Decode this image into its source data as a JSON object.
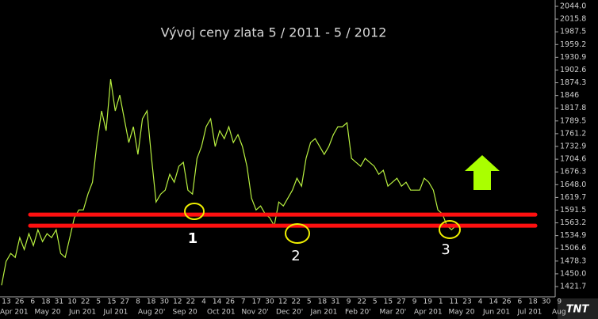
{
  "chart_data": {
    "type": "line",
    "title": "Vývoj ceny zlata 5 / 2011  -  5 / 2012",
    "color": "#b8f040",
    "values": [
      1424.8,
      1477.6,
      1495.2,
      1486.4,
      1530.4,
      1504.0,
      1539.2,
      1512.8,
      1548.0,
      1521.6,
      1539.2,
      1530.4,
      1548.0,
      1495.2,
      1486.4,
      1530.4,
      1574.3,
      1591.9,
      1591.9,
      1627.1,
      1653.5,
      1741.5,
      1811.8,
      1767.8,
      1882.2,
      1811.8,
      1847.0,
      1794.2,
      1741.5,
      1776.6,
      1715.1,
      1794.2,
      1811.8,
      1706.3,
      1609.5,
      1627.1,
      1635.9,
      1671.1,
      1653.5,
      1688.7,
      1697.5,
      1635.9,
      1627.1,
      1706.3,
      1732.7,
      1776.6,
      1794.2,
      1732.7,
      1767.8,
      1750.2,
      1776.6,
      1741.5,
      1759.0,
      1732.7,
      1688.7,
      1618.3,
      1591.9,
      1600.7,
      1583.1,
      1574.3,
      1556.8,
      1609.5,
      1600.7,
      1618.3,
      1635.9,
      1662.3,
      1644.7,
      1706.3,
      1741.5,
      1750.2,
      1732.7,
      1715.1,
      1732.7,
      1759.0,
      1776.6,
      1776.6,
      1785.4,
      1706.3,
      1697.5,
      1688.7,
      1706.3,
      1697.5,
      1688.7,
      1671.1,
      1679.9,
      1644.7,
      1653.5,
      1662.3,
      1644.7,
      1653.5,
      1635.9,
      1635.9,
      1635.9,
      1662.3,
      1653.5,
      1635.9,
      1591.9,
      1583.1,
      1556.8,
      1548.0,
      1556.8
    ],
    "ylim": [
      1398.9,
      2058.1
    ],
    "yticks": [
      {
        "value": 2044,
        "label": "2044.0"
      },
      2015.8,
      1987.5,
      1959.2,
      1930.9,
      1902.6,
      1874.3,
      1846,
      1817.8,
      1789.5,
      1761.2,
      1732.9,
      1704.6,
      1676.3,
      {
        "value": 1648,
        "label": "1648.0"
      },
      1619.7,
      1591.5,
      1563.2,
      1534.9,
      1506.6,
      1478.3,
      {
        "value": 1450,
        "label": "1450.0"
      },
      1421.7
    ],
    "x_day_labels": [
      "13",
      "26",
      "6",
      "18",
      "31",
      "10",
      "22",
      "5",
      "15",
      "27",
      "8",
      "18",
      "30",
      "12",
      "22",
      "4",
      "14",
      "26",
      "7",
      "17",
      "30",
      "12",
      "22",
      "5",
      "18",
      "31",
      "9",
      "22",
      "5",
      "15",
      "27",
      "9",
      "19",
      "1",
      "11",
      "23",
      "4",
      "14",
      "26",
      "6",
      "18",
      "30",
      "9"
    ],
    "x_month_labels": [
      "Apr 201",
      "May 20",
      "Jun 201",
      "Jul 201",
      "Aug 20'",
      "Sep 20",
      "Oct 201",
      "Nov 20'",
      "Dec 20'",
      "Jan 201",
      "Feb 20'",
      "Mar 20'",
      "Apr 201",
      "May 20",
      "Jun 201",
      "Jul 201",
      "Aug"
    ],
    "support_lines": {
      "color": "#ff1010",
      "values": [
        1581.4,
        1556.8
      ]
    },
    "annotations": [
      "1",
      "2",
      "3"
    ],
    "logo": "TNT"
  }
}
